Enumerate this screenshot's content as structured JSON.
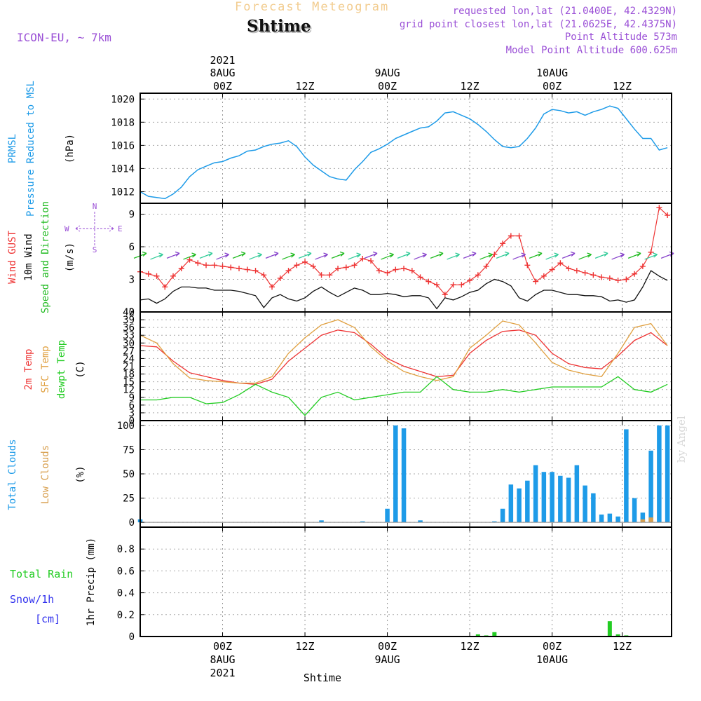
{
  "header": {
    "subtitle": "Forecast Meteogram",
    "title": "Shtime",
    "model": "ICON-EU, ~ 7km",
    "info": [
      "requested lon,lat (21.0400E, 42.4329N)",
      "grid point closest lon,lat (21.0625E, 42.4375N)",
      "Point Altitude 573m",
      "Model Point Altitude 600.625m"
    ],
    "watermark": "by Angel"
  },
  "colors": {
    "pressure": "#1e9be8",
    "gust": "#ee3333",
    "wind": "#111111",
    "arrows": "#22bb22",
    "temp2m": "#ee3333",
    "sfc": "#e0a040",
    "dewpt": "#22cc22",
    "total_clouds": "#1e9be8",
    "low_clouds": "#d8a050",
    "rain": "#22cc22",
    "snow": "#3333ee",
    "label_purple": "#9a4fd6"
  },
  "time_axis": {
    "start_hour": 0,
    "end_hour": 64.5,
    "bottom_hour_labels": [
      "00Z",
      "12Z",
      "00Z",
      "12Z",
      "00Z",
      "12Z"
    ],
    "bottom_date_labels": [
      "8AUG",
      "9AUG",
      "10AUG"
    ],
    "year_label": "2021",
    "bottom_caption": "Shtime"
  },
  "chart_data": [
    {
      "type": "line",
      "id": "pressure",
      "title": "PRMSL Pressure Reduced to MSL",
      "ylabel_lines": [
        "PRMSL",
        "Pressure Reduced to MSL"
      ],
      "unit": "(hPa)",
      "ylim": [
        1011,
        1020.5
      ],
      "yticks": [
        1012,
        1014,
        1016,
        1018,
        1020
      ],
      "series": [
        {
          "name": "PRMSL",
          "x": [
            0,
            1,
            2,
            3,
            4,
            5,
            6,
            7,
            8,
            9,
            10,
            11,
            12,
            13,
            14,
            15,
            16,
            17,
            18,
            19,
            20,
            21,
            22,
            23,
            24,
            25,
            26,
            27,
            28,
            29,
            30,
            31,
            32,
            33,
            34,
            35,
            36,
            37,
            38,
            39,
            40,
            41,
            42,
            43,
            44,
            45,
            46,
            47,
            48,
            49,
            50,
            51,
            52,
            53,
            54,
            55,
            56,
            57,
            58,
            59,
            60,
            61,
            62,
            63,
            64
          ],
          "y": [
            1012.0,
            1011.6,
            1011.5,
            1011.4,
            1011.8,
            1012.4,
            1013.3,
            1013.9,
            1014.2,
            1014.5,
            1014.6,
            1014.9,
            1015.1,
            1015.5,
            1015.6,
            1015.9,
            1016.1,
            1016.2,
            1016.4,
            1015.9,
            1015.0,
            1014.3,
            1013.8,
            1013.3,
            1013.1,
            1013.0,
            1013.9,
            1014.6,
            1015.4,
            1015.7,
            1016.1,
            1016.6,
            1016.9,
            1017.2,
            1017.5,
            1017.6,
            1018.1,
            1018.8,
            1018.9,
            1018.6,
            1018.3,
            1017.8,
            1017.2,
            1016.5,
            1015.9,
            1015.8,
            1015.9,
            1016.6,
            1017.5,
            1018.7,
            1019.1,
            1019.0,
            1018.8,
            1018.9,
            1018.6,
            1018.9,
            1019.1,
            1019.4,
            1019.2,
            1018.3,
            1017.4,
            1016.6,
            1016.6,
            1015.6,
            1015.8
          ]
        }
      ]
    },
    {
      "type": "line",
      "id": "wind",
      "ylabel_lines": [
        "Wind GUST",
        "10m Wind",
        "Speed and Direction"
      ],
      "unit": "(m/s)",
      "compass": {
        "n": "N",
        "s": "S",
        "w": "W",
        "e": "E"
      },
      "ylim": [
        0,
        10
      ],
      "yticks": [
        0,
        3,
        6,
        9
      ],
      "series": [
        {
          "name": "Wind GUST",
          "x": [
            0,
            1,
            2,
            3,
            4,
            5,
            6,
            7,
            8,
            9,
            10,
            11,
            12,
            13,
            14,
            15,
            16,
            17,
            18,
            19,
            20,
            21,
            22,
            23,
            24,
            25,
            26,
            27,
            28,
            29,
            30,
            31,
            32,
            33,
            34,
            35,
            36,
            37,
            38,
            39,
            40,
            41,
            42,
            43,
            44,
            45,
            46,
            47,
            48,
            49,
            50,
            51,
            52,
            53,
            54,
            55,
            56,
            57,
            58,
            59,
            60,
            61,
            62,
            63,
            64
          ],
          "y": [
            3.7,
            3.5,
            3.3,
            2.3,
            3.3,
            4.0,
            4.8,
            4.5,
            4.3,
            4.3,
            4.2,
            4.1,
            4.0,
            3.9,
            3.8,
            3.4,
            2.3,
            3.1,
            3.8,
            4.3,
            4.6,
            4.2,
            3.4,
            3.4,
            4.0,
            4.1,
            4.3,
            4.9,
            4.7,
            3.8,
            3.6,
            3.9,
            4.0,
            3.8,
            3.2,
            2.8,
            2.5,
            1.6,
            2.5,
            2.5,
            2.9,
            3.4,
            4.2,
            5.3,
            6.3,
            7.0,
            7.0,
            4.3,
            2.8,
            3.3,
            3.9,
            4.5,
            4.0,
            3.8,
            3.6,
            3.4,
            3.2,
            3.1,
            2.9,
            3.0,
            3.5,
            4.2,
            5.5,
            9.6,
            8.9
          ]
        },
        {
          "name": "10m Wind",
          "x": [
            0,
            1,
            2,
            3,
            4,
            5,
            6,
            7,
            8,
            9,
            10,
            11,
            12,
            13,
            14,
            15,
            16,
            17,
            18,
            19,
            20,
            21,
            22,
            23,
            24,
            25,
            26,
            27,
            28,
            29,
            30,
            31,
            32,
            33,
            34,
            35,
            36,
            37,
            38,
            39,
            40,
            41,
            42,
            43,
            44,
            45,
            46,
            47,
            48,
            49,
            50,
            51,
            52,
            53,
            54,
            55,
            56,
            57,
            58,
            59,
            60,
            61,
            62,
            63,
            64
          ],
          "y": [
            1.1,
            1.2,
            0.8,
            1.2,
            1.9,
            2.3,
            2.3,
            2.2,
            2.2,
            2.0,
            2.0,
            2.0,
            1.9,
            1.7,
            1.5,
            0.4,
            1.3,
            1.6,
            1.2,
            1.0,
            1.3,
            1.9,
            2.3,
            1.8,
            1.4,
            1.8,
            2.2,
            2.0,
            1.6,
            1.6,
            1.7,
            1.6,
            1.4,
            1.5,
            1.5,
            1.3,
            0.3,
            1.3,
            1.1,
            1.4,
            1.8,
            2.0,
            2.6,
            3.0,
            2.8,
            2.4,
            1.3,
            1.0,
            1.6,
            2.0,
            2.0,
            1.8,
            1.6,
            1.6,
            1.5,
            1.5,
            1.4,
            1.0,
            1.1,
            0.9,
            1.1,
            2.3,
            3.8,
            3.3,
            2.9
          ]
        }
      ]
    },
    {
      "type": "line",
      "id": "temperature",
      "ylabel_lines": [
        "2m Temp",
        "SFC Temp",
        "dewpt Temp"
      ],
      "unit": "(C)",
      "ylim": [
        0,
        42
      ],
      "yticks": [
        0,
        3,
        6,
        9,
        12,
        15,
        18,
        21,
        24,
        27,
        30,
        33,
        36,
        39,
        42
      ],
      "series": [
        {
          "name": "2m Temp",
          "x": [
            0,
            2,
            4,
            6,
            8,
            10,
            12,
            14,
            16,
            18,
            20,
            22,
            24,
            26,
            28,
            30,
            32,
            34,
            36,
            38,
            40,
            42,
            44,
            46,
            48,
            50,
            52,
            54,
            56,
            58,
            60,
            62,
            64
          ],
          "y": [
            29,
            28.5,
            23,
            18.5,
            17,
            15.5,
            14.5,
            14,
            16,
            23,
            28,
            33,
            35,
            34,
            29.5,
            24,
            21,
            19,
            17,
            17.5,
            26,
            31,
            34.5,
            35,
            33,
            26,
            22,
            20.5,
            20,
            25,
            31,
            34,
            29
          ]
        },
        {
          "name": "SFC Temp",
          "x": [
            0,
            2,
            4,
            6,
            8,
            10,
            12,
            14,
            16,
            18,
            20,
            22,
            24,
            26,
            28,
            30,
            32,
            34,
            36,
            38,
            40,
            42,
            44,
            46,
            48,
            50,
            52,
            54,
            56,
            58,
            60,
            62,
            64
          ],
          "y": [
            33,
            30,
            22,
            16.5,
            15.5,
            15,
            14.5,
            14.5,
            17,
            26,
            32,
            37,
            39,
            36,
            28.5,
            23,
            19,
            17,
            15.5,
            17,
            28,
            33,
            38.5,
            37,
            30,
            22.5,
            19.5,
            18,
            17,
            26,
            36,
            37.5,
            29
          ]
        },
        {
          "name": "dewpt Temp",
          "x": [
            0,
            2,
            4,
            6,
            8,
            10,
            12,
            14,
            16,
            18,
            20,
            22,
            24,
            26,
            28,
            30,
            32,
            34,
            36,
            38,
            40,
            42,
            44,
            46,
            48,
            50,
            52,
            54,
            56,
            58,
            60,
            62,
            64
          ],
          "y": [
            8,
            8,
            9,
            9,
            6.5,
            7,
            10,
            14,
            11,
            9,
            2,
            9,
            11,
            8,
            9,
            10,
            11,
            11,
            17,
            12,
            11,
            11,
            12,
            11,
            12,
            13,
            13,
            13,
            13,
            17,
            12,
            11,
            14
          ]
        }
      ]
    },
    {
      "type": "bar",
      "id": "clouds",
      "ylabel_lines": [
        "Total Clouds",
        "Low Clouds"
      ],
      "unit": "(%)",
      "ylim": [
        -5,
        105
      ],
      "yticks": [
        0,
        25,
        50,
        75,
        100
      ],
      "series": [
        {
          "name": "Total Clouds",
          "x": [
            0,
            1,
            2,
            3,
            4,
            5,
            6,
            7,
            8,
            9,
            10,
            11,
            12,
            13,
            14,
            15,
            16,
            17,
            18,
            19,
            20,
            21,
            22,
            23,
            24,
            25,
            26,
            27,
            28,
            29,
            30,
            31,
            32,
            33,
            34,
            35,
            36,
            37,
            38,
            39,
            40,
            41,
            42,
            43,
            44,
            45,
            46,
            47,
            48,
            49,
            50,
            51,
            52,
            53,
            54,
            55,
            56,
            57,
            58,
            59,
            60,
            61,
            62,
            63,
            64
          ],
          "y": [
            3,
            0,
            0,
            0,
            0,
            0,
            0,
            0,
            0,
            0,
            0,
            0,
            0,
            0,
            0,
            0,
            0,
            0,
            0,
            0,
            0,
            0,
            2,
            0,
            0,
            0,
            0,
            1,
            0,
            0,
            14,
            100,
            97,
            0,
            2,
            0,
            0,
            0,
            0,
            0,
            0,
            0,
            0,
            1,
            14,
            39,
            35,
            43,
            59,
            52,
            52,
            48,
            46,
            59,
            38,
            30,
            8,
            9,
            6,
            0,
            0,
            0,
            0,
            0,
            96
          ]
        },
        {
          "name": "Total Clouds (late)",
          "x": [
            56,
            57,
            58,
            59,
            60,
            61,
            62,
            63,
            64
          ],
          "y": [
            0,
            0,
            0,
            96,
            25,
            10,
            74,
            100,
            100
          ]
        },
        {
          "name": "Low Clouds",
          "x": [
            58,
            59,
            60,
            61,
            62
          ],
          "y": [
            0,
            0,
            0,
            3,
            5
          ]
        }
      ]
    },
    {
      "type": "bar",
      "id": "precip",
      "ylabel_lines": [
        "1hr Precip (mm)"
      ],
      "legend": {
        "rain": "Total  Rain",
        "snow": "Snow/1h",
        "snow_unit": "[cm]"
      },
      "ylim": [
        0,
        1
      ],
      "yticks": [
        0,
        0.2,
        0.4,
        0.6,
        0.8
      ],
      "ytick_labels": [
        "0",
        "0.2",
        "0.4",
        "0.6",
        "0.8"
      ],
      "series": [
        {
          "name": "Total Rain",
          "x": [
            41,
            42,
            43,
            57,
            58,
            59
          ],
          "y": [
            0.02,
            0.01,
            0.04,
            0.14,
            0.02,
            0.01
          ]
        }
      ]
    }
  ]
}
